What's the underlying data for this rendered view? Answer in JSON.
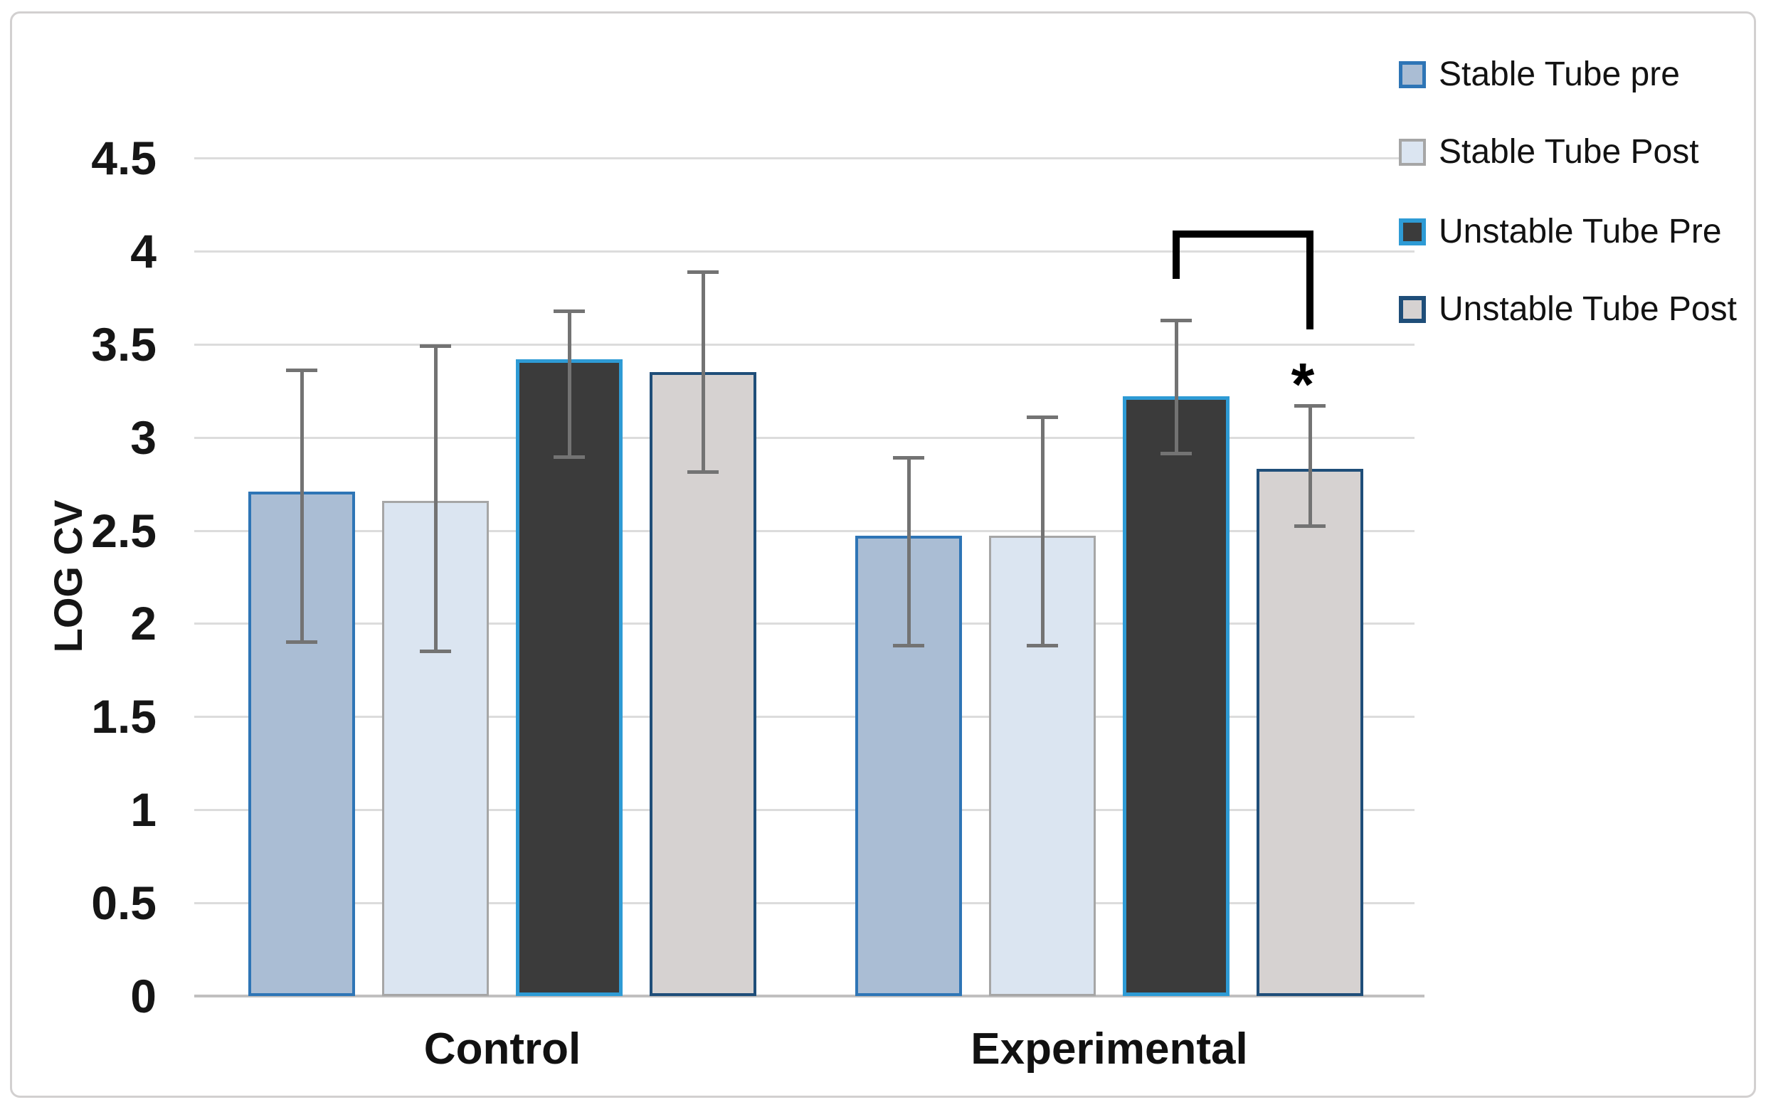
{
  "figure": {
    "background": "#ffffff",
    "border_color": "#d2d0d0"
  },
  "chart_data": {
    "type": "bar",
    "title": "",
    "xlabel": "",
    "ylabel": "LOG CV",
    "ylim": [
      0,
      4.5
    ],
    "ytick_step": 0.5,
    "grid": true,
    "legend_position": "top-right",
    "gridline_color": "#dcdcdc",
    "axis_line_color": "#c0bfbf",
    "error_bar_color": "#737373",
    "categories": [
      "Control",
      "Experimental"
    ],
    "series": [
      {
        "name": "Stable Tube pre",
        "fill": "#aabdd4",
        "border": "#2e75b6",
        "values": [
          2.71,
          2.47
        ],
        "error_high": [
          3.36,
          2.89
        ],
        "error_low": [
          1.9,
          1.88
        ]
      },
      {
        "name": "Stable Tube Post",
        "fill": "#dbe5f1",
        "border": "#a6a6a6",
        "values": [
          2.66,
          2.47
        ],
        "error_high": [
          3.49,
          3.11
        ],
        "error_low": [
          1.85,
          1.88
        ]
      },
      {
        "name": "Unstable Tube Pre",
        "fill": "#3b3b3b",
        "border": "#2e9bd5",
        "values": [
          3.42,
          3.22
        ],
        "error_high": [
          3.68,
          3.63
        ],
        "error_low": [
          2.89,
          2.91
        ]
      },
      {
        "name": "Unstable Tube Post",
        "fill": "#d6d2d1",
        "border": "#1f4e79",
        "values": [
          3.35,
          2.83
        ],
        "error_high": [
          3.89,
          3.17
        ],
        "error_low": [
          2.81,
          2.52
        ]
      }
    ],
    "significance": {
      "symbol": "*",
      "category": "Experimental",
      "between": [
        "Unstable Tube Pre",
        "Unstable Tube Post"
      ],
      "bracket_y": 4.07,
      "tick_bottom_left": 3.85,
      "tick_bottom_right": 3.58,
      "symbol_y": 3.33
    }
  }
}
